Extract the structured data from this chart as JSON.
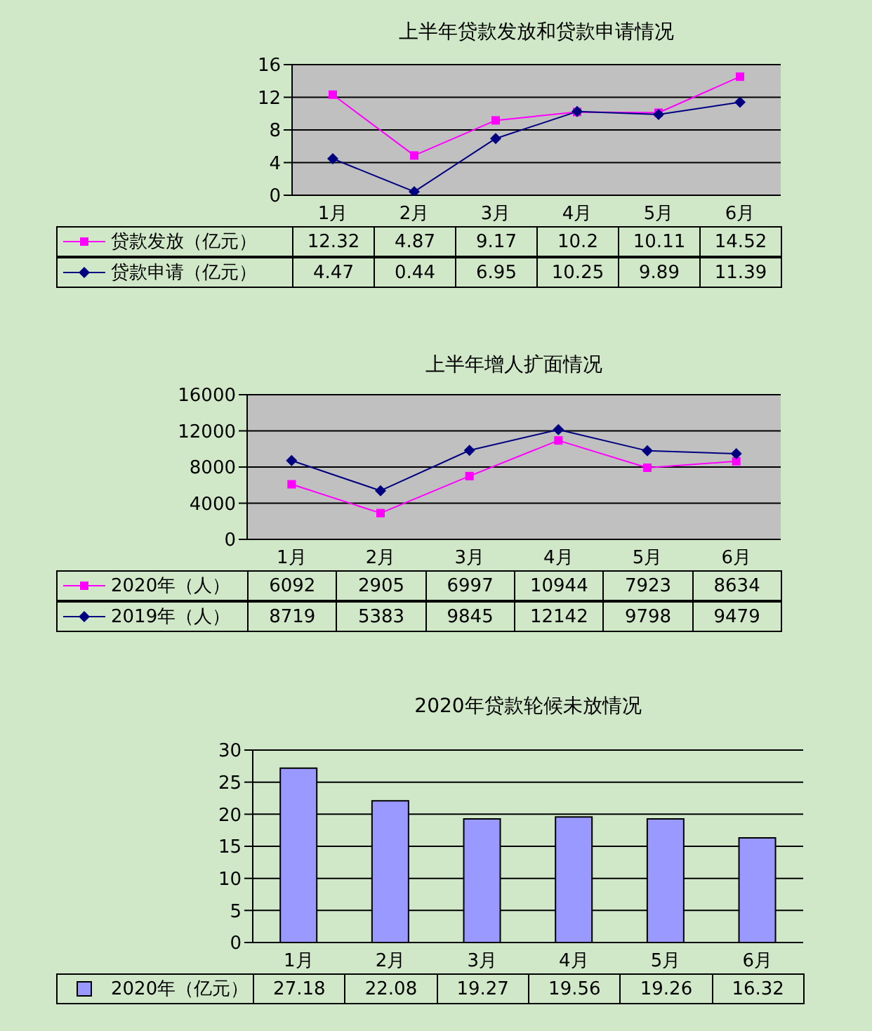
{
  "chart_data": [
    {
      "type": "line",
      "title": "上半年贷款发放和贷款申请情况",
      "categories": [
        "1月",
        "2月",
        "3月",
        "4月",
        "5月",
        "6月"
      ],
      "series": [
        {
          "name": "贷款发放（亿元）",
          "color": "#ff00ff",
          "marker": "square",
          "values": [
            12.32,
            4.87,
            9.17,
            10.2,
            10.11,
            14.52
          ]
        },
        {
          "name": "贷款申请（亿元）",
          "color": "#000080",
          "marker": "diamond",
          "values": [
            4.47,
            0.44,
            6.95,
            10.25,
            9.89,
            11.39
          ]
        }
      ],
      "ylim": [
        0,
        16
      ],
      "yticks": [
        0,
        4,
        8,
        12,
        16
      ],
      "grid": "y",
      "legend": "bottom left",
      "data_labels": true
    },
    {
      "type": "line",
      "title": "上半年增人扩面情况",
      "categories": [
        "1月",
        "2月",
        "3月",
        "4月",
        "5月",
        "6月"
      ],
      "series": [
        {
          "name": "2020年（人）",
          "color": "#ff00ff",
          "marker": "square",
          "values": [
            6092,
            2905,
            6997,
            10944,
            7923,
            8634
          ]
        },
        {
          "name": "2019年（人）",
          "color": "#000080",
          "marker": "diamond",
          "values": [
            8719,
            5383,
            9845,
            12142,
            9798,
            9479
          ]
        }
      ],
      "ylim": [
        0,
        16000
      ],
      "yticks": [
        0,
        4000,
        8000,
        12000,
        16000
      ],
      "grid": "y",
      "legend": "bottom left",
      "data_labels": true
    },
    {
      "type": "bar",
      "title": "2020年贷款轮候未放情况",
      "categories": [
        "1月",
        "2月",
        "3月",
        "4月",
        "5月",
        "6月"
      ],
      "series": [
        {
          "name": "2020年（亿元）",
          "color": "#9999ff",
          "values": [
            27.18,
            22.08,
            19.27,
            19.56,
            19.26,
            16.32
          ]
        }
      ],
      "ylim": [
        0,
        30
      ],
      "yticks": [
        0,
        5,
        10,
        15,
        20,
        25,
        30
      ],
      "grid": "y",
      "legend": "bottom left",
      "data_labels": true
    }
  ]
}
